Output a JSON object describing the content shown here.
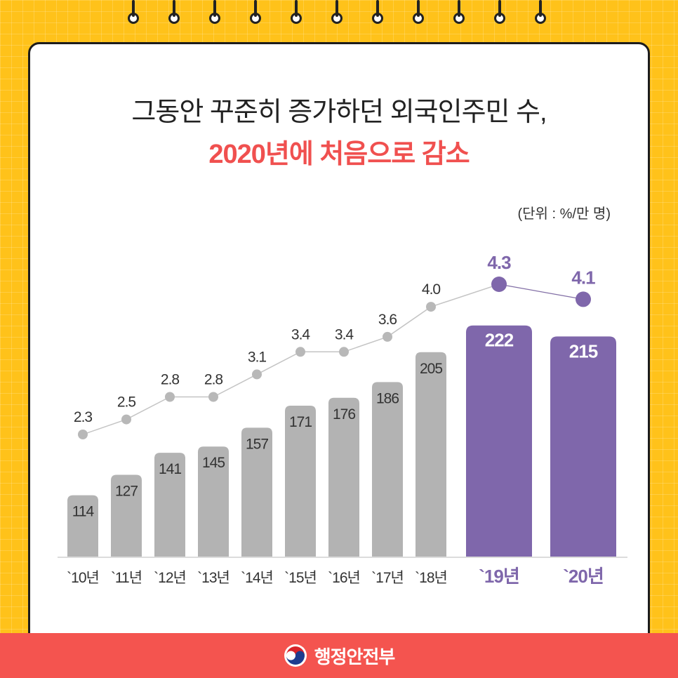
{
  "header": {
    "title_line1": "그동안 꾸준히 증가하던 외국인주민 수,",
    "title_line2": "2020년에 처음으로 감소"
  },
  "unit_label": "(단위 : %/만 명)",
  "footer": {
    "agency": "행정안전부",
    "logo_icon": "taegeuk-logo-icon"
  },
  "colors": {
    "background": "#ffc21a",
    "card": "#ffffff",
    "bar_gray": "#b3b3b3",
    "bar_highlight": "#7f67ab",
    "title_accent": "#f0504f",
    "footer": "#f4544f"
  },
  "chart_data": {
    "type": "bar",
    "title": "그동안 꾸준히 증가하던 외국인주민 수, 2020년에 처음으로 감소",
    "categories": [
      "`10년",
      "`11년",
      "`12년",
      "`13년",
      "`14년",
      "`15년",
      "`16년",
      "`17년",
      "`18년",
      "`19년",
      "`20년"
    ],
    "highlight": [
      "`19년",
      "`20년"
    ],
    "series": [
      {
        "type": "bar",
        "values": [
          114,
          127,
          141,
          145,
          157,
          171,
          176,
          186,
          205,
          222,
          215
        ],
        "labels": [
          "114",
          "127",
          "141",
          "145",
          "157",
          "171",
          "176",
          "186",
          "205",
          "222",
          "215"
        ]
      },
      {
        "type": "line",
        "values": [
          2.3,
          2.5,
          2.8,
          2.8,
          3.1,
          3.4,
          3.4,
          3.6,
          4.0,
          4.3,
          4.1
        ],
        "labels": [
          "2.3",
          "2.5",
          "2.8",
          "2.8",
          "3.1",
          "3.4",
          "3.4",
          "3.6",
          "4.0",
          "4.3",
          "4.1"
        ]
      }
    ],
    "grid": false,
    "legend": "none"
  }
}
